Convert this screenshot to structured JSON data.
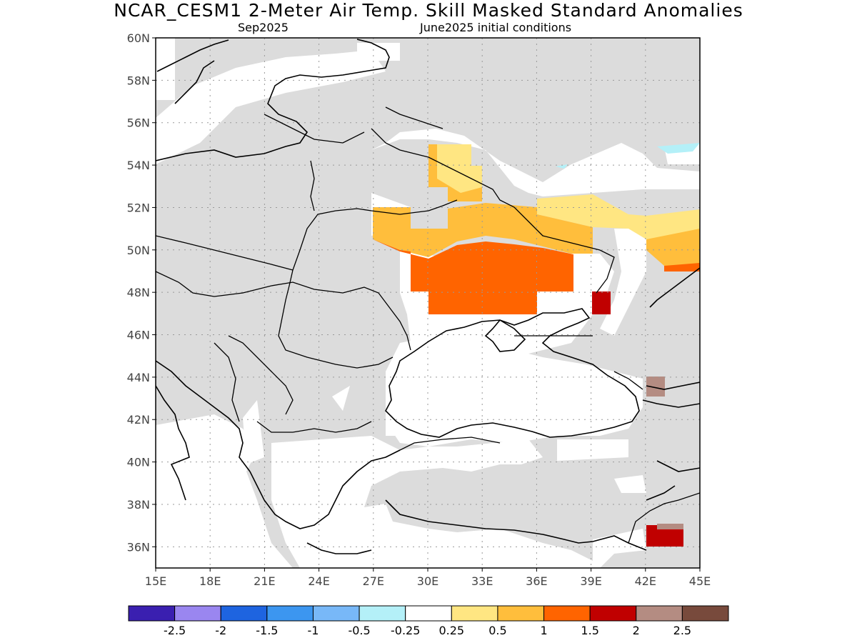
{
  "title": "NCAR_CESM1 2-Meter Air Temp. Skill Masked Standard Anomalies",
  "subtitle_left": "Sep2025",
  "subtitle_right": "June2025 initial conditions",
  "map": {
    "lon_range": [
      15,
      45
    ],
    "lat_range": [
      35,
      60
    ],
    "lat_ticks": [
      "60N",
      "58N",
      "56N",
      "54N",
      "52N",
      "50N",
      "48N",
      "46N",
      "44N",
      "42N",
      "40N",
      "38N",
      "36N"
    ],
    "lon_ticks": [
      "15E",
      "18E",
      "21E",
      "24E",
      "27E",
      "30E",
      "33E",
      "36E",
      "39E",
      "42E",
      "45E"
    ],
    "grid": true,
    "masked_color": "#dcdcdc"
  },
  "colorbar": {
    "colors": [
      "#3a1fb0",
      "#9a86f0",
      "#1e64e0",
      "#3c96f0",
      "#78b8f8",
      "#b4f0f8",
      "#ffffff",
      "#ffe682",
      "#ffbe3c",
      "#ff6400",
      "#c00000",
      "#b48c82",
      "#784a3c"
    ],
    "labels": [
      "-2.5",
      "-2",
      "-1.5",
      "-1",
      "-0.5",
      "-0.25",
      "0.25",
      "0.5",
      "1",
      "1.5",
      "2",
      "2.5"
    ]
  }
}
